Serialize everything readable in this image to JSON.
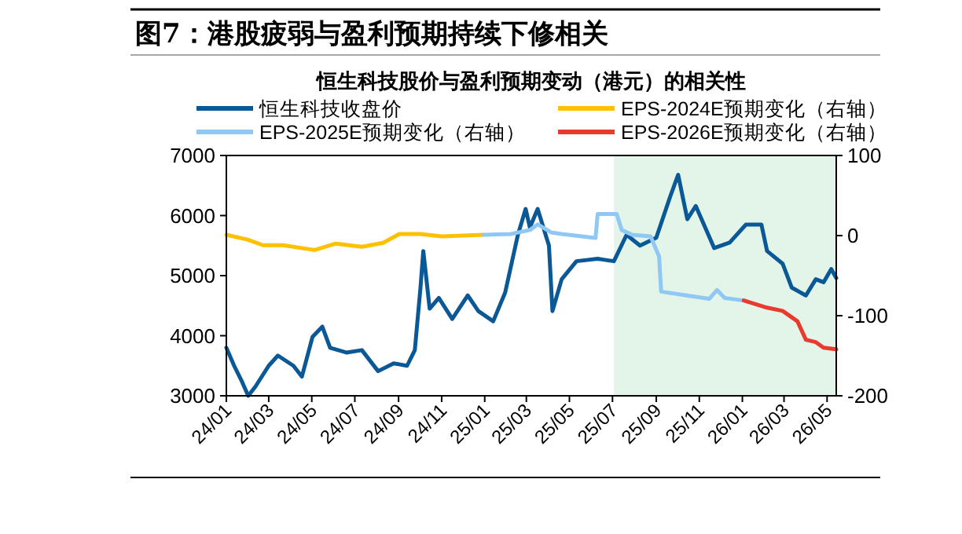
{
  "chart_data": {
    "type": "line",
    "title": "图7：港股疲弱与盈利预期持续下修相关",
    "subtitle": "恒生科技股价与盈利预期变动（港元）的相关性",
    "xlim": [
      "2024-01-01",
      "2026-05-14"
    ],
    "xticks": [
      {
        "value": "2024-01",
        "label": "24/01"
      },
      {
        "value": "2024-03",
        "label": "24/03"
      },
      {
        "value": "2024-05",
        "label": "24/05"
      },
      {
        "value": "2024-07",
        "label": "24/07"
      },
      {
        "value": "2024-09",
        "label": "24/09"
      },
      {
        "value": "2024-11",
        "label": "24/11"
      },
      {
        "value": "2025-01",
        "label": "25/01"
      },
      {
        "value": "2025-03",
        "label": "25/03"
      },
      {
        "value": "2025-05",
        "label": "25/05"
      },
      {
        "value": "2025-07",
        "label": "25/07"
      },
      {
        "value": "2025-09",
        "label": "25/09"
      },
      {
        "value": "2025-11",
        "label": "25/11"
      },
      {
        "value": "2026-01",
        "label": "26/01"
      },
      {
        "value": "2026-03",
        "label": "26/03"
      },
      {
        "value": "2026-05",
        "label": "26/05"
      }
    ],
    "ylim": [
      3000,
      7000
    ],
    "yticks": [
      3000,
      4000,
      5000,
      6000,
      7000
    ],
    "y2lim": [
      -200,
      100
    ],
    "y2ticks": [
      -200,
      -100,
      0,
      100
    ],
    "legend": "top",
    "grid": false,
    "bands": [
      {
        "axis": "x",
        "from": "2025-07-03",
        "to": "2026-05-14",
        "color": "#e3f5e9"
      }
    ],
    "series": [
      {
        "name": "恒生科技收盘价",
        "color": "#0b5896",
        "x": [
          "2024-01-01",
          "2024-01-12",
          "2024-01-23",
          "2024-02-01",
          "2024-02-11",
          "2024-03-01",
          "2024-03-14",
          "2024-04-05",
          "2024-04-17",
          "2024-05-02",
          "2024-05-16",
          "2024-05-27",
          "2024-06-19",
          "2024-07-11",
          "2024-08-03",
          "2024-08-25",
          "2024-09-13",
          "2024-09-24",
          "2024-10-02",
          "2024-10-06",
          "2024-10-15",
          "2024-10-28",
          "2024-11-16",
          "2024-12-08",
          "2024-12-23",
          "2025-01-13",
          "2025-01-30",
          "2025-02-17",
          "2025-02-28",
          "2025-03-06",
          "2025-03-17",
          "2025-04-02",
          "2025-04-07",
          "2025-04-20",
          "2025-05-11",
          "2025-06-10",
          "2025-07-03",
          "2025-07-21",
          "2025-08-09",
          "2025-09-01",
          "2025-09-20",
          "2025-10-02",
          "2025-10-15",
          "2025-10-27",
          "2025-11-22",
          "2025-12-14",
          "2026-01-06",
          "2026-01-28",
          "2026-02-05",
          "2026-02-27",
          "2026-03-12",
          "2026-04-01",
          "2026-04-15",
          "2026-04-26",
          "2026-05-07",
          "2026-05-14"
        ],
        "values": [
          3800,
          3500,
          3240,
          3000,
          3150,
          3500,
          3670,
          3500,
          3320,
          3980,
          4150,
          3800,
          3720,
          3760,
          3410,
          3540,
          3500,
          3760,
          4800,
          5410,
          4450,
          4630,
          4280,
          4670,
          4410,
          4240,
          4720,
          5680,
          6110,
          5800,
          6110,
          5500,
          4410,
          4940,
          5240,
          5280,
          5240,
          5680,
          5500,
          5630,
          6290,
          6680,
          5940,
          6160,
          5460,
          5550,
          5850,
          5850,
          5410,
          5200,
          4800,
          4670,
          4940,
          4890,
          5110,
          4960
        ]
      },
      {
        "name": "EPS-2024E预期变化（右轴）",
        "color": "#ffc000",
        "axis": "y2",
        "x": [
          "2024-01-01",
          "2024-01-31",
          "2024-02-22",
          "2024-03-21",
          "2024-05-05",
          "2024-06-04",
          "2024-07-11",
          "2024-08-10",
          "2024-09-02",
          "2024-10-02",
          "2024-11-01",
          "2024-12-30"
        ],
        "values": [
          1,
          -5,
          -12,
          -12,
          -18,
          -10,
          -14,
          -9,
          2,
          2,
          -1,
          1
        ]
      },
      {
        "name": "EPS-2025E预期变化（右轴）",
        "color": "#8fc7f5",
        "axis": "y2",
        "x": [
          "2024-12-30",
          "2025-02-07",
          "2025-03-06",
          "2025-03-17",
          "2025-04-05",
          "2025-04-20",
          "2025-06-07",
          "2025-06-10",
          "2025-07-07",
          "2025-07-14",
          "2025-07-29",
          "2025-08-24",
          "2025-09-05",
          "2025-09-08",
          "2025-10-16",
          "2025-11-15",
          "2025-11-26",
          "2025-12-07",
          "2026-01-03"
        ],
        "values": [
          1,
          2,
          7,
          14,
          4,
          2,
          -3,
          27,
          27,
          7,
          1,
          -1,
          -26,
          -70,
          -75,
          -79,
          -68,
          -78,
          -81
        ]
      },
      {
        "name": "EPS-2026E预期变化（右轴）",
        "color": "#e83a2d",
        "axis": "y2",
        "x": [
          "2026-01-03",
          "2026-02-05",
          "2026-02-27",
          "2026-03-20",
          "2026-04-01",
          "2026-04-15",
          "2026-04-26",
          "2026-05-14"
        ],
        "values": [
          -81,
          -90,
          -94,
          -107,
          -130,
          -133,
          -140,
          -142
        ]
      }
    ]
  }
}
